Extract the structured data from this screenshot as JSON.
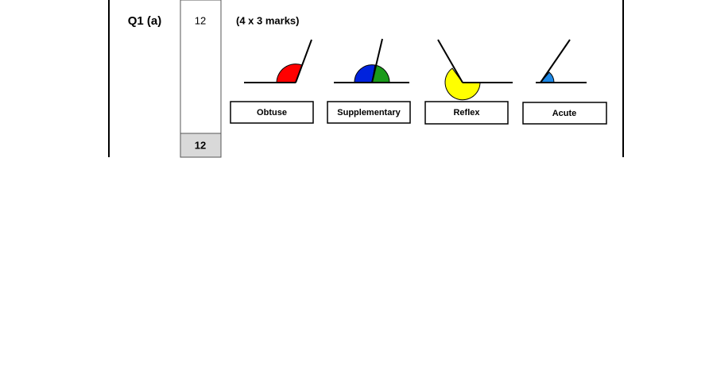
{
  "question": "Q1 (a)",
  "marks": "12",
  "total": "12",
  "note": "(4 x 3 marks)",
  "answers": [
    "Obtuse",
    "Supplementary",
    "Reflex",
    "Acute"
  ]
}
